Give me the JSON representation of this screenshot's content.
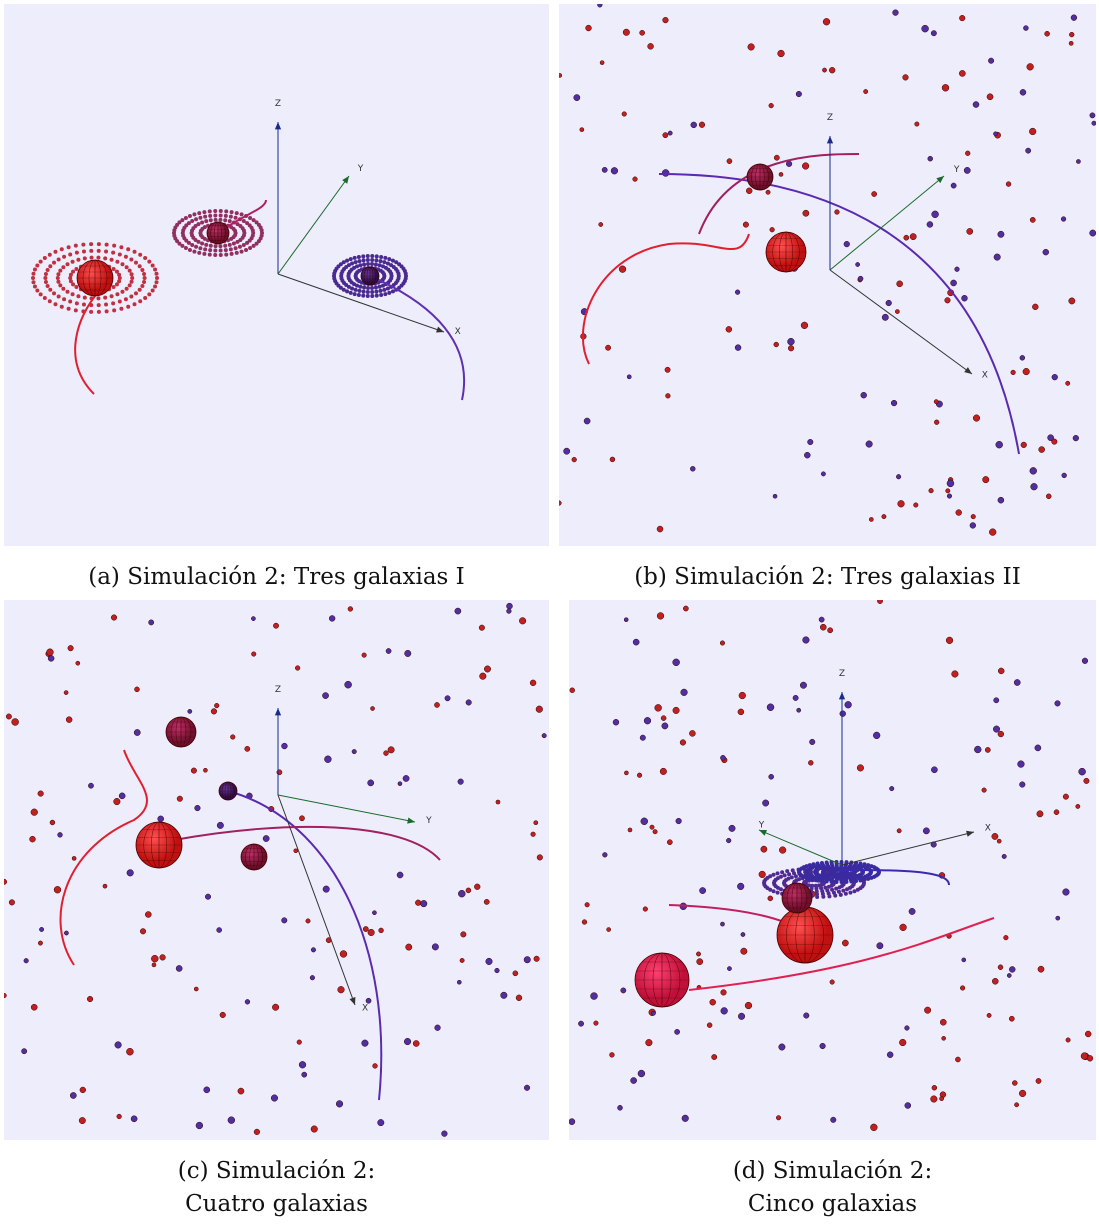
{
  "panels": [
    {
      "axes": {
        "x": "X",
        "y": "Y",
        "z": "Z"
      },
      "caption": [
        "(a) Simulación 2: Tres galaxias I"
      ]
    },
    {
      "axes": {
        "x": "X",
        "y": "Y",
        "z": "Z"
      },
      "caption": [
        "(b) Simulación 2: Tres galaxias II"
      ]
    },
    {
      "axes": {
        "x": "X",
        "y": "Y",
        "z": "Z"
      },
      "caption": [
        "(c) Simulación 2:",
        "Cuatro galaxias"
      ]
    },
    {
      "axes": {
        "x": "X",
        "y": "Y",
        "z": "Z"
      },
      "caption": [
        "(d) Simulación 2:",
        "Cinco galaxias"
      ]
    }
  ]
}
